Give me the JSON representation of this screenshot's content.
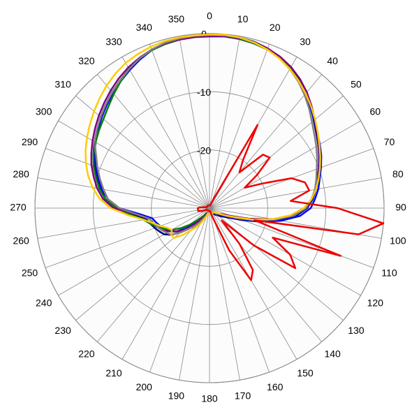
{
  "chart_data": {
    "type": "polar",
    "x": [
      0,
      5,
      10,
      15,
      20,
      25,
      30,
      35,
      40,
      45,
      50,
      55,
      60,
      65,
      70,
      75,
      80,
      85,
      90,
      95,
      100,
      105,
      110,
      115,
      120,
      125,
      130,
      135,
      140,
      145,
      150,
      155,
      160,
      165,
      170,
      175,
      180,
      185,
      190,
      195,
      200,
      205,
      210,
      215,
      220,
      225,
      230,
      235,
      240,
      245,
      250,
      255,
      260,
      265,
      270,
      275,
      280,
      285,
      290,
      295,
      300,
      305,
      310,
      315,
      320,
      325,
      330,
      335,
      340,
      345,
      350,
      355
    ],
    "xticks": [
      0,
      10,
      20,
      30,
      40,
      50,
      60,
      70,
      80,
      90,
      100,
      110,
      120,
      130,
      140,
      150,
      160,
      170,
      180,
      190,
      200,
      210,
      220,
      230,
      240,
      250,
      260,
      270,
      280,
      290,
      300,
      310,
      320,
      330,
      340,
      350
    ],
    "ylim": [
      -30,
      0
    ],
    "yticks": [
      0,
      -10,
      -20
    ],
    "grid": true,
    "series": [
      {
        "color": "#000080",
        "values": [
          -0.3,
          -0.2,
          -0.2,
          -0.4,
          -0.8,
          -1.4,
          -2.2,
          -3.2,
          -4.3,
          -5.4,
          -6.6,
          -7.6,
          -8.4,
          -9.2,
          -10,
          -10.8,
          -11.4,
          -12.2,
          -13.2,
          -15,
          -18,
          -21,
          -24,
          -26,
          -27,
          -27.5,
          -28,
          -28.5,
          -28.5,
          -29,
          -29,
          -29,
          -29,
          -29,
          -29,
          -29,
          -29,
          -29,
          -29,
          -29,
          -29,
          -28.5,
          -28,
          -27,
          -26,
          -25,
          -23.5,
          -22,
          -21,
          -20.5,
          -20,
          -19.5,
          -19,
          -17,
          -14,
          -12,
          -11,
          -10,
          -9,
          -8,
          -7.2,
          -6.4,
          -5.6,
          -4.8,
          -4,
          -3.2,
          -2.4,
          -1.6,
          -1,
          -0.6,
          -0.4,
          -0.3
        ]
      },
      {
        "color": "#0000ff",
        "values": [
          -0.4,
          -0.3,
          -0.3,
          -0.5,
          -0.9,
          -1.5,
          -2.4,
          -3.4,
          -4.5,
          -5.5,
          -6.5,
          -7.4,
          -8.1,
          -8.8,
          -9.6,
          -10.4,
          -11,
          -11.8,
          -12.6,
          -14.4,
          -17.5,
          -21,
          -24.5,
          -26.5,
          -27.5,
          -28,
          -28.5,
          -29,
          -29,
          -29,
          -29,
          -29,
          -29,
          -29,
          -29,
          -29,
          -29,
          -29,
          -29,
          -29,
          -29,
          -29,
          -28.5,
          -28,
          -27,
          -26,
          -24.5,
          -23,
          -22,
          -21.5,
          -21,
          -20.5,
          -20,
          -18,
          -14.5,
          -12.5,
          -11.2,
          -10.2,
          -9.2,
          -8.2,
          -7.4,
          -6.6,
          -5.8,
          -5,
          -4.2,
          -3.4,
          -2.6,
          -1.8,
          -1.1,
          -0.7,
          -0.5,
          -0.4
        ]
      },
      {
        "color": "#008000",
        "values": [
          -0.4,
          -0.4,
          -0.5,
          -0.7,
          -1,
          -1.5,
          -2.2,
          -3,
          -4,
          -5.2,
          -6.4,
          -7.4,
          -8.2,
          -9,
          -9.8,
          -10.6,
          -11.4,
          -12.4,
          -13.6,
          -15.5,
          -18.5,
          -22,
          -25,
          -27,
          -28,
          -28.5,
          -29,
          -29,
          -29,
          -29,
          -29,
          -29,
          -29,
          -29,
          -29,
          -29,
          -29,
          -29,
          -29,
          -29,
          -29,
          -29,
          -29,
          -28.5,
          -28,
          -27,
          -25.5,
          -24,
          -22.5,
          -21.5,
          -20.5,
          -19.5,
          -18.5,
          -16.5,
          -14,
          -12,
          -10.8,
          -9.8,
          -8.8,
          -8,
          -7.4,
          -6.8,
          -6.2,
          -5.4,
          -4.4,
          -3.4,
          -2.4,
          -1.6,
          -1.1,
          -0.8,
          -0.6,
          -0.5
        ]
      },
      {
        "color": "#800080",
        "values": [
          -0.5,
          -0.4,
          -0.4,
          -0.5,
          -0.8,
          -1.3,
          -2,
          -2.9,
          -4,
          -5.2,
          -6.4,
          -7.4,
          -8.3,
          -9.1,
          -9.9,
          -10.7,
          -11.5,
          -12.4,
          -13.5,
          -15.5,
          -19,
          -23,
          -26,
          -27.5,
          -28,
          -28.5,
          -28.5,
          -29,
          -29,
          -29,
          -29,
          -29,
          -29,
          -29,
          -29,
          -29,
          -29,
          -29,
          -29,
          -29,
          -29,
          -29,
          -28.5,
          -28,
          -27,
          -25.5,
          -24,
          -23,
          -22,
          -21,
          -20.5,
          -20,
          -19.5,
          -17.5,
          -13.5,
          -11.6,
          -10.4,
          -9.4,
          -8.4,
          -7.6,
          -6.8,
          -6,
          -5.2,
          -4.4,
          -3.6,
          -2.8,
          -2.1,
          -1.5,
          -1,
          -0.7,
          -0.6,
          -0.5
        ]
      },
      {
        "color": "#808080",
        "values": [
          -0.2,
          -0.2,
          -0.3,
          -0.6,
          -1,
          -1.6,
          -2.4,
          -3.4,
          -4.6,
          -5.8,
          -7,
          -8,
          -8.8,
          -9.6,
          -10.4,
          -11,
          -11.6,
          -12.4,
          -13.4,
          -15.4,
          -18.5,
          -22,
          -25,
          -27,
          -28,
          -28.5,
          -28.5,
          -29,
          -29,
          -29,
          -29,
          -29,
          -29,
          -29,
          -29,
          -29,
          -29,
          -29,
          -29,
          -29,
          -29,
          -28.5,
          -28,
          -27,
          -26,
          -25,
          -23.5,
          -22,
          -21.5,
          -21,
          -20.5,
          -20,
          -19.5,
          -17.5,
          -14.5,
          -12.5,
          -11.5,
          -10.5,
          -9.5,
          -8.5,
          -7.2,
          -6.4,
          -5.6,
          -4.8,
          -4,
          -3.2,
          -2.4,
          -1.6,
          -1,
          -0.6,
          -0.4,
          -0.3
        ]
      },
      {
        "color": "#ffcc00",
        "values": [
          -0.2,
          -0.1,
          -0.2,
          -0.5,
          -1,
          -1.6,
          -2.4,
          -3.3,
          -4.3,
          -5.3,
          -6.3,
          -7.3,
          -8.2,
          -9,
          -9.8,
          -10.6,
          -11.4,
          -12.4,
          -13.8,
          -16,
          -19,
          -22.5,
          -25.5,
          -27,
          -28,
          -28.5,
          -29,
          -29,
          -29,
          -29,
          -29,
          -29,
          -29,
          -29,
          -29,
          -29,
          -29,
          -29,
          -29,
          -29,
          -28.5,
          -28,
          -27,
          -26,
          -25,
          -23.5,
          -22,
          -22,
          -22.5,
          -22,
          -21,
          -20,
          -18.5,
          -16,
          -13,
          -11,
          -9.6,
          -8.4,
          -7.4,
          -6.5,
          -5.7,
          -4.9,
          -4.1,
          -3.3,
          -2.5,
          -1.8,
          -1.2,
          -0.8,
          -0.5,
          -0.3,
          -0.2,
          -0.2
        ]
      },
      {
        "color": "#ee0000",
        "values": [
          -29.5,
          -29.5,
          -29.5,
          -29.5,
          -29,
          -28,
          -13.5,
          -20,
          -22,
          -17,
          -16.5,
          -20,
          -23,
          -20,
          -15,
          -13,
          -12.6,
          -16,
          -8,
          0,
          -4,
          -22,
          -6,
          -18,
          -14,
          -12,
          -20,
          -27,
          -22,
          -17,
          -15.7,
          -22,
          -28,
          -29,
          -29.5,
          -29.5,
          -29.5,
          -29.5,
          -29.5,
          -29.5,
          -29.5,
          -29.5,
          -29.5,
          -29.5,
          -29.5,
          -29.5,
          -29.5,
          -29.5,
          -29.5,
          -29,
          -28.5,
          -28,
          -28,
          -28,
          -28,
          -28.5,
          -29,
          -29.5,
          -29.5,
          -29.5,
          -29.5,
          -29.5,
          -29.5,
          -29.5,
          -29.5,
          -29.5,
          -29.5,
          -29.5,
          -29.5,
          -29.5,
          -29.5,
          -29.5
        ]
      }
    ]
  }
}
